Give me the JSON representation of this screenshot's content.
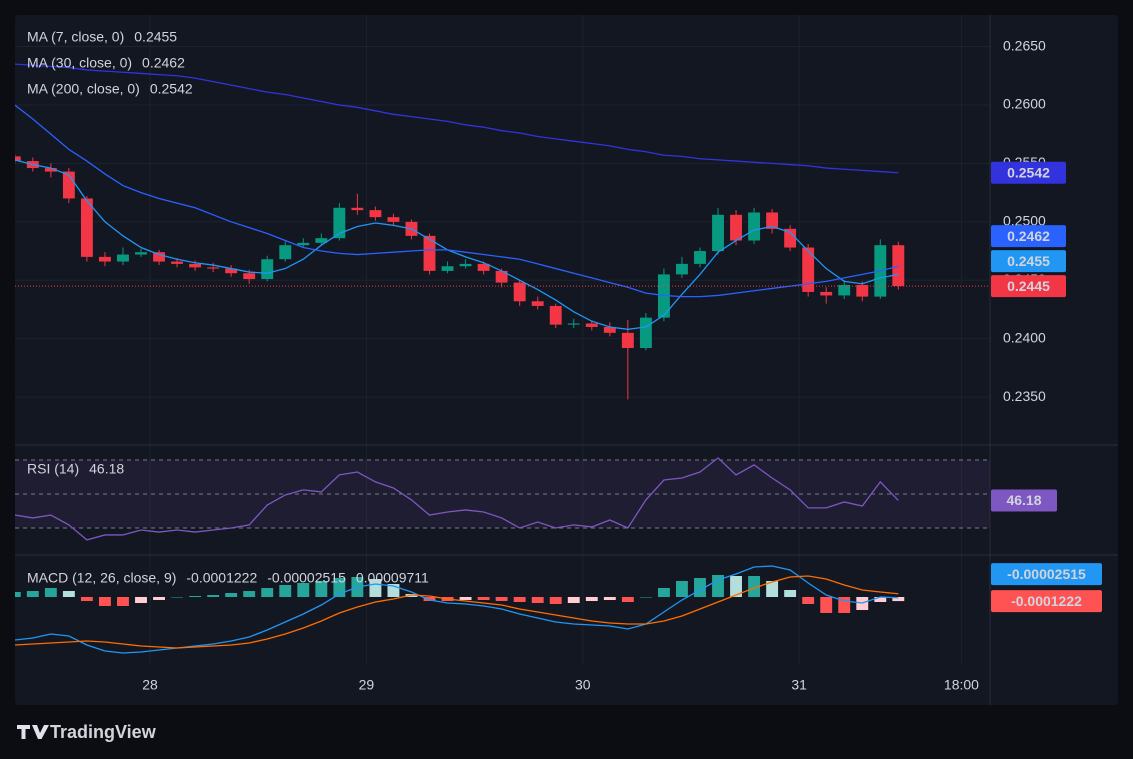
{
  "brand": "TradingView",
  "chart_data": [
    {
      "type": "candlestick",
      "xlim": [
        27.376,
        31.882
      ],
      "xticks": [
        28,
        29,
        30,
        31,
        {
          "value": 31.75,
          "label": "18:00"
        }
      ],
      "ylim": [
        0.2309,
        0.2677
      ],
      "yticks": [
        {
          "value": 0.265,
          "label": "0.2650"
        },
        {
          "value": 0.26,
          "label": "0.2600"
        },
        {
          "value": 0.255,
          "label": "0.2550"
        },
        {
          "value": 0.25,
          "label": "0.2500"
        },
        {
          "value": 0.245,
          "label": "0.2450"
        },
        {
          "value": 0.24,
          "label": "0.2400"
        },
        {
          "value": 0.235,
          "label": "0.2350"
        }
      ],
      "grid": true,
      "up_color": "#089981",
      "down_color": "#f23645",
      "x": [
        27.375,
        27.4583,
        27.5417,
        27.625,
        27.7083,
        27.7917,
        27.875,
        27.9583,
        28.0417,
        28.125,
        28.2083,
        28.2917,
        28.375,
        28.4583,
        28.5417,
        28.625,
        28.7083,
        28.7917,
        28.875,
        28.9583,
        29.0417,
        29.125,
        29.2083,
        29.2917,
        29.375,
        29.4583,
        29.5417,
        29.625,
        29.7083,
        29.7917,
        29.875,
        29.9583,
        30.0417,
        30.125,
        30.2083,
        30.2917,
        30.375,
        30.4583,
        30.5417,
        30.625,
        30.7083,
        30.7917,
        30.875,
        30.9583,
        31.0417,
        31.125,
        31.2083,
        31.2917,
        31.375,
        31.4583
      ],
      "open": [
        0.2556,
        0.2552,
        0.2546,
        0.2543,
        0.252,
        0.247,
        0.2466,
        0.2472,
        0.2474,
        0.2466,
        0.2464,
        0.2461,
        0.246,
        0.2456,
        0.2451,
        0.2468,
        0.248,
        0.2482,
        0.2486,
        0.2512,
        0.251,
        0.2504,
        0.25,
        0.2488,
        0.2458,
        0.2462,
        0.2464,
        0.2458,
        0.2448,
        0.2432,
        0.2428,
        0.2412,
        0.2413,
        0.241,
        0.2405,
        0.2392,
        0.2418,
        0.2455,
        0.2464,
        0.2475,
        0.2506,
        0.2484,
        0.2508,
        0.2494,
        0.2478,
        0.244,
        0.2437,
        0.2446,
        0.2436,
        0.248
      ],
      "high": [
        0.2558,
        0.2555,
        0.255,
        0.2546,
        0.2522,
        0.2474,
        0.2478,
        0.2477,
        0.2476,
        0.2469,
        0.2467,
        0.2465,
        0.2463,
        0.2459,
        0.2471,
        0.2484,
        0.2486,
        0.249,
        0.2516,
        0.2524,
        0.2513,
        0.2507,
        0.2502,
        0.249,
        0.2466,
        0.2468,
        0.2466,
        0.246,
        0.245,
        0.2436,
        0.243,
        0.2417,
        0.2415,
        0.2414,
        0.2416,
        0.2422,
        0.246,
        0.247,
        0.2478,
        0.2512,
        0.251,
        0.2512,
        0.2511,
        0.2497,
        0.2481,
        0.2444,
        0.245,
        0.2449,
        0.2485,
        0.2483
      ],
      "low": [
        0.255,
        0.2543,
        0.2538,
        0.2516,
        0.2466,
        0.2462,
        0.2463,
        0.247,
        0.2463,
        0.2461,
        0.2458,
        0.2457,
        0.2453,
        0.2447,
        0.2449,
        0.2466,
        0.2478,
        0.248,
        0.2484,
        0.2506,
        0.2501,
        0.2497,
        0.2485,
        0.2455,
        0.2456,
        0.246,
        0.2455,
        0.2444,
        0.2428,
        0.2425,
        0.2409,
        0.2409,
        0.2407,
        0.2402,
        0.2348,
        0.239,
        0.2415,
        0.2452,
        0.2461,
        0.2472,
        0.248,
        0.2481,
        0.249,
        0.2475,
        0.2436,
        0.243,
        0.2434,
        0.2432,
        0.2434,
        0.2442
      ],
      "close": [
        0.2552,
        0.2546,
        0.2543,
        0.252,
        0.247,
        0.2466,
        0.2472,
        0.2474,
        0.2466,
        0.2464,
        0.2461,
        0.246,
        0.2456,
        0.2451,
        0.2468,
        0.248,
        0.2482,
        0.2486,
        0.2512,
        0.251,
        0.2504,
        0.25,
        0.2488,
        0.2458,
        0.2462,
        0.2464,
        0.2458,
        0.2448,
        0.2432,
        0.2428,
        0.2412,
        0.2413,
        0.241,
        0.2405,
        0.2392,
        0.2418,
        0.2455,
        0.2464,
        0.2475,
        0.2506,
        0.2484,
        0.2508,
        0.2494,
        0.2478,
        0.244,
        0.2437,
        0.2446,
        0.2436,
        0.248,
        0.2445
      ],
      "series": [
        {
          "name": "MA (7, close, 0)",
          "color": "#2196f3",
          "values": [
            0.2553,
            0.2549,
            0.2546,
            0.254,
            0.2518,
            0.25,
            0.2488,
            0.2478,
            0.2472,
            0.2468,
            0.2465,
            0.2463,
            0.246,
            0.2457,
            0.2456,
            0.246,
            0.2468,
            0.248,
            0.249,
            0.2496,
            0.2499,
            0.2497,
            0.2494,
            0.2485,
            0.2476,
            0.247,
            0.2465,
            0.2458,
            0.245,
            0.2442,
            0.2433,
            0.2423,
            0.2415,
            0.241,
            0.2408,
            0.241,
            0.242,
            0.2438,
            0.2455,
            0.2474,
            0.2484,
            0.2493,
            0.2496,
            0.2491,
            0.2475,
            0.246,
            0.2449,
            0.2447,
            0.2452,
            0.2455
          ]
        },
        {
          "name": "MA (30, close, 0)",
          "color": "#2962ff",
          "values": [
            0.26,
            0.2588,
            0.2575,
            0.2562,
            0.2552,
            0.2541,
            0.2531,
            0.2525,
            0.252,
            0.2516,
            0.2512,
            0.2506,
            0.25,
            0.2495,
            0.249,
            0.2484,
            0.2478,
            0.2475,
            0.2473,
            0.2472,
            0.2473,
            0.2474,
            0.2475,
            0.2476,
            0.2476,
            0.2474,
            0.2472,
            0.247,
            0.2468,
            0.2464,
            0.246,
            0.2456,
            0.2452,
            0.2448,
            0.2444,
            0.2439,
            0.2437,
            0.2436,
            0.2436,
            0.2437,
            0.2439,
            0.2441,
            0.2443,
            0.2445,
            0.2447,
            0.2449,
            0.2452,
            0.2455,
            0.2458,
            0.2462
          ]
        },
        {
          "name": "MA (200, close, 0)",
          "color": "#3333dd",
          "values": [
            0.2635,
            0.2634,
            0.2633,
            0.2632,
            0.263,
            0.2629,
            0.2628,
            0.2627,
            0.2626,
            0.2625,
            0.2623,
            0.262,
            0.2617,
            0.2614,
            0.2611,
            0.2609,
            0.2606,
            0.2603,
            0.26,
            0.2598,
            0.2595,
            0.2592,
            0.259,
            0.2588,
            0.2586,
            0.2583,
            0.2581,
            0.2578,
            0.2576,
            0.2573,
            0.2571,
            0.2569,
            0.2567,
            0.2565,
            0.2562,
            0.256,
            0.2557,
            0.2556,
            0.2554,
            0.2553,
            0.2552,
            0.2551,
            0.255,
            0.2549,
            0.2548,
            0.2546,
            0.2545,
            0.2544,
            0.2543,
            0.2542
          ]
        }
      ]
    },
    {
      "type": "line",
      "ylim": [
        14.1,
        78.8
      ],
      "levels": [
        70,
        50,
        30
      ],
      "series": [
        {
          "name": "RSI (14)",
          "color": "#7e57c2",
          "values": [
            37.6,
            35.9,
            37.6,
            31.8,
            23.0,
            25.9,
            25.9,
            28.8,
            27.6,
            28.8,
            27.6,
            28.8,
            30.0,
            31.8,
            43.5,
            49.4,
            52.4,
            51.2,
            61.2,
            62.9,
            57.1,
            53.5,
            46.5,
            37.6,
            39.4,
            40.6,
            39.4,
            35.9,
            30.0,
            33.5,
            30.0,
            31.8,
            30.6,
            34.7,
            30.0,
            46.5,
            58.2,
            59.4,
            62.9,
            71.2,
            61.2,
            67.1,
            59.4,
            52.4,
            41.8,
            41.8,
            45.3,
            42.9,
            57.1,
            46.18
          ]
        }
      ]
    },
    {
      "type": "macd",
      "title": "MACD (12, 26, close, 9)",
      "ylim": [
        -0.00204,
        0.00126
      ],
      "series": [
        {
          "style": "histogram",
          "colors": [
            "#26a69a",
            "#b2dfdb",
            "#ff5252",
            "#ffcdd2"
          ],
          "values": [
            0.00015,
            0.00018,
            0.00027,
            0.00018,
            -0.00012,
            -0.00027,
            -0.00027,
            -0.00018,
            -9e-05,
            0,
            3e-05,
            6e-05,
            0.00012,
            0.00018,
            0.00027,
            0.00036,
            0.00042,
            0.00048,
            0.00057,
            0.0006,
            0.00054,
            0.00039,
            9e-05,
            -0.00012,
            -0.00012,
            -9e-05,
            -9e-05,
            -0.00012,
            -0.00015,
            -0.00018,
            -0.00021,
            -0.00018,
            -0.00012,
            -9e-05,
            -0.00015,
            0,
            0.00027,
            0.00048,
            0.00057,
            0.00066,
            0.00063,
            0.00063,
            0.00048,
            0.00021,
            -0.00021,
            -0.00048,
            -0.00048,
            -0.00039,
            -0.00015,
            -0.0001222
          ]
        },
        {
          "style": "line",
          "color": "#2196f3",
          "values": [
            -0.00129,
            -0.00123,
            -0.00111,
            -0.00117,
            -0.00144,
            -0.00162,
            -0.00168,
            -0.00165,
            -0.00159,
            -0.00153,
            -0.00147,
            -0.00141,
            -0.00132,
            -0.0012,
            -0.00099,
            -0.00075,
            -0.00051,
            -0.00024,
            9e-05,
            0.0003,
            0.00039,
            0.00033,
            0.00015,
            -9e-05,
            -0.00018,
            -0.00021,
            -0.00027,
            -0.00036,
            -0.00051,
            -0.00063,
            -0.00075,
            -0.00081,
            -0.00084,
            -0.00087,
            -0.00096,
            -0.00081,
            -0.00045,
            -9e-05,
            0.00021,
            0.00051,
            0.00069,
            0.0009,
            0.00093,
            0.00081,
            0.00042,
            6e-05,
            -0.00012,
            -0.00018,
            0,
            -2.515e-05
          ]
        },
        {
          "style": "line",
          "color": "#ff6d00",
          "values": [
            -0.00144,
            -0.00141,
            -0.00138,
            -0.00135,
            -0.00132,
            -0.00135,
            -0.00141,
            -0.00147,
            -0.0015,
            -0.00153,
            -0.0015,
            -0.00147,
            -0.00144,
            -0.00138,
            -0.00126,
            -0.00111,
            -0.00093,
            -0.00072,
            -0.00048,
            -0.0003,
            -0.00015,
            -6e-05,
            6e-05,
            3e-05,
            -6e-05,
            -0.00012,
            -0.00018,
            -0.00024,
            -0.00036,
            -0.00045,
            -0.00054,
            -0.00063,
            -0.00072,
            -0.00078,
            -0.00081,
            -0.00081,
            -0.00072,
            -0.00057,
            -0.00036,
            -0.00015,
            6e-05,
            0.00027,
            0.00045,
            0.0006,
            0.00063,
            0.00054,
            0.00036,
            0.00021,
            0.00015,
            9.711e-05
          ]
        }
      ]
    }
  ]
}
